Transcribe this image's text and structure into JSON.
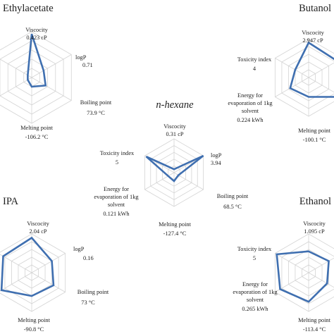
{
  "colors": {
    "series": "#3f6fb0",
    "grid": "#d4d4d4",
    "text": "#222222"
  },
  "chart_data": [
    {
      "type": "radar",
      "id": "ethylacetate",
      "title": "Ethylacetate",
      "axes": [
        {
          "name": "Viscocity",
          "value": "0.423 cP"
        },
        {
          "name": "logP",
          "value": "0.71"
        },
        {
          "name": "Boiling point",
          "value": "73.9 °C"
        },
        {
          "name": "Melting point",
          "value": "-106.2 °C"
        }
      ],
      "scores": [
        0.95,
        0.3,
        0.35,
        0.2,
        0.1,
        0.1
      ]
    },
    {
      "type": "radar",
      "id": "butanol",
      "title": "Butanol",
      "axes": [
        {
          "name": "Viscocity",
          "value": "2.947 cP"
        },
        {
          "name": "Toxicity index",
          "value": "4"
        },
        {
          "name": "Energy for evaporation of 1kg solvent",
          "value": "0.224 kWh"
        },
        {
          "name": "Melting point",
          "value": "-100.1 °C"
        }
      ],
      "scores": [
        0.9,
        0.85,
        1.0,
        0.5,
        0.55,
        0.4
      ]
    },
    {
      "type": "radar",
      "id": "n-hexane",
      "title": "n-hexane",
      "axes": [
        {
          "name": "Viscocity",
          "value": "0.31 cP"
        },
        {
          "name": "logP",
          "value": "3.94"
        },
        {
          "name": "Boiling point",
          "value": "68.5 °C"
        },
        {
          "name": "Melting point",
          "value": "-127.4 °C"
        },
        {
          "name": "Energy for evaporation of 1kg solvent",
          "value": "0.121 kWh"
        },
        {
          "name": "Toxicity index",
          "value": "5"
        }
      ],
      "scores": [
        0.1,
        1.0,
        0.15,
        0.25,
        0.2,
        0.95
      ]
    },
    {
      "type": "radar",
      "id": "ipa",
      "title": "IPA",
      "axes": [
        {
          "name": "Viscocity",
          "value": "2.04 cP"
        },
        {
          "name": "logP",
          "value": "0.16"
        },
        {
          "name": "Boiling point",
          "value": "73 °C"
        },
        {
          "name": "Melting point",
          "value": "-90.8 °C"
        }
      ],
      "scores": [
        0.9,
        0.6,
        0.65,
        0.6,
        0.9,
        0.85
      ]
    },
    {
      "type": "radar",
      "id": "ethanol",
      "title": "Ethanol",
      "axes": [
        {
          "name": "Viscocity",
          "value": "1.095 cP"
        },
        {
          "name": "Toxicity index",
          "value": "5"
        },
        {
          "name": "Energy for evaporation of 1kg solvent",
          "value": "0.265 kWh"
        },
        {
          "name": "Melting point",
          "value": "-113.4 °C"
        }
      ],
      "scores": [
        0.55,
        0.6,
        0.55,
        0.75,
        0.85,
        0.95
      ]
    }
  ]
}
